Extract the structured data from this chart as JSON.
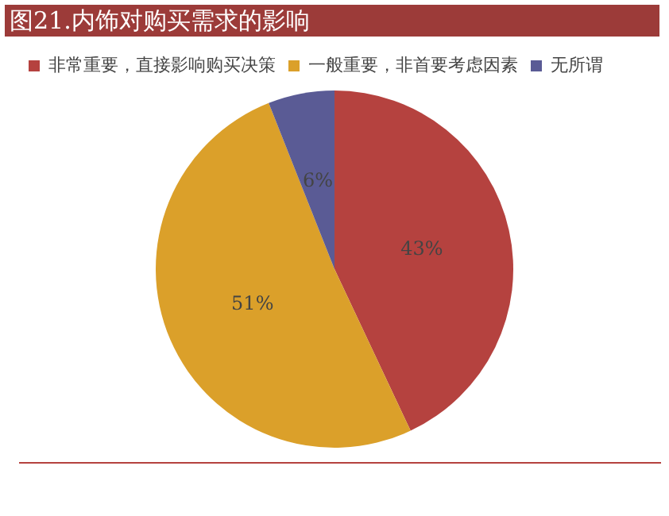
{
  "chart_data": {
    "type": "pie",
    "title": "图21.内饰对购买需求的影响",
    "categories": [
      "非常重要，直接影响购买决策",
      "一般重要，非首要考虑因素",
      "无所谓"
    ],
    "values": [
      43,
      51,
      6
    ],
    "colors": [
      "#b5423f",
      "#dba02a",
      "#5a5b95"
    ],
    "value_labels": [
      "43%",
      "51%",
      "6%"
    ],
    "legend": "top left"
  }
}
